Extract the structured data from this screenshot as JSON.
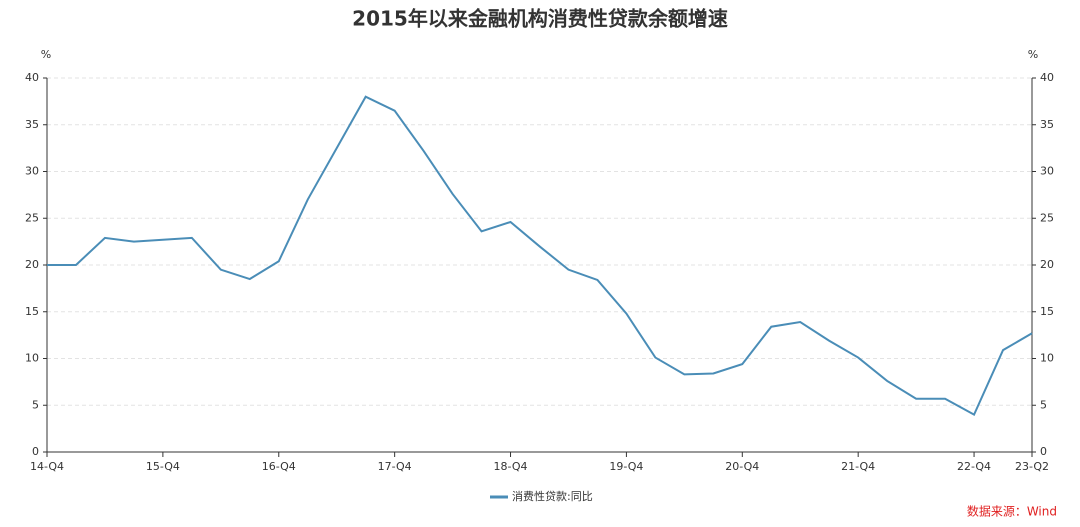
{
  "chart_data": {
    "type": "line",
    "title": "2015年以来金融机构消费性贷款余额增速",
    "y_unit": "%",
    "y2_unit": "%",
    "categories": [
      "14-Q4",
      null,
      null,
      null,
      "15-Q4",
      null,
      null,
      null,
      "16-Q4",
      null,
      null,
      null,
      "17-Q4",
      null,
      null,
      null,
      "18-Q4",
      null,
      null,
      null,
      "19-Q4",
      null,
      null,
      null,
      "20-Q4",
      null,
      null,
      null,
      "21-Q4",
      null,
      null,
      null,
      "22-Q4",
      null,
      "23-Q2"
    ],
    "series": [
      {
        "name": "消费性贷款:同比",
        "color": "#4a8db7",
        "values": [
          20,
          20,
          22.9,
          22.5,
          22.7,
          22.9,
          19.5,
          18.5,
          20.4,
          27,
          32.5,
          38,
          36.5,
          32.2,
          27.6,
          23.6,
          24.6,
          22,
          19.5,
          18.4,
          14.8,
          10.1,
          8.3,
          8.4,
          9.4,
          13.4,
          13.9,
          11.9,
          10.1,
          7.6,
          5.7,
          5.7,
          4,
          10.9,
          12.7
        ]
      }
    ],
    "ylim": [
      0,
      40
    ],
    "yticks": [
      0,
      5,
      10,
      15,
      20,
      25,
      30,
      35,
      40
    ],
    "y2lim": [
      0,
      40
    ],
    "y2ticks": [
      0,
      5,
      10,
      15,
      20,
      25,
      30,
      35,
      40
    ],
    "grid": true,
    "source": "数据来源：Wind"
  }
}
